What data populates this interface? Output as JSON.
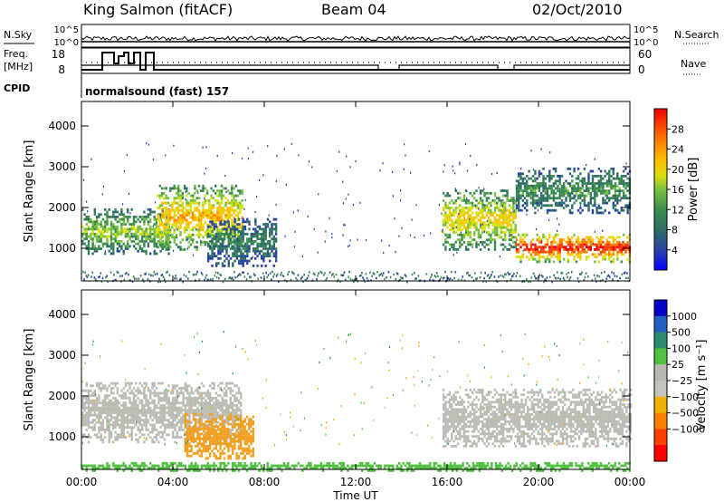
{
  "header": {
    "station": "King Salmon (fitACF)",
    "beam": "Beam 04",
    "date": "02/Oct/2010"
  },
  "top_panels": {
    "nsky_label": "N.Sky",
    "nsky_ticks": [
      "10^5",
      "10^0"
    ],
    "nsearch_label": "N.Search",
    "nsearch_ticks": [
      "10^5",
      "10^0"
    ],
    "freq_label_1": "Freq.",
    "freq_label_2": "[MHz]",
    "freq_ticks": [
      "18",
      "8"
    ],
    "nave_label": "Nave",
    "nave_ticks": [
      "60",
      "0"
    ],
    "cpid_label": "CPID",
    "cpid_text": "normalsound (fast) 157"
  },
  "chart_data": [
    {
      "type": "heatmap",
      "name": "power-panel",
      "ylabel": "Slant Range [km]",
      "ylim": [
        200,
        4600
      ],
      "yticks": [
        1000,
        2000,
        3000,
        4000
      ],
      "xlim": [
        0,
        24
      ],
      "colorbar": {
        "label": "Power [dB]",
        "ticks": [
          "4",
          "8",
          "12",
          "16",
          "20",
          "24",
          "28"
        ],
        "colors": [
          "#0000ff",
          "#2840a8",
          "#2e6e64",
          "#3a8c50",
          "#78c040",
          "#d8e010",
          "#ffc000",
          "#ff8000",
          "#ff4000",
          "#ee0000"
        ]
      },
      "features": [
        {
          "t_start": 0.0,
          "t_end": 3.8,
          "range_low": 900,
          "range_high": 2000,
          "power_db": 14
        },
        {
          "t_start": 3.3,
          "t_end": 7.0,
          "range_low": 1000,
          "range_high": 2600,
          "power_db": 20
        },
        {
          "t_start": 5.5,
          "t_end": 8.5,
          "range_low": 600,
          "range_high": 1800,
          "power_db": 8
        },
        {
          "t_start": 15.8,
          "t_end": 19.0,
          "range_low": 1000,
          "range_high": 2500,
          "power_db": 18
        },
        {
          "t_start": 19.0,
          "t_end": 24.0,
          "range_low": 700,
          "range_high": 1400,
          "power_db": 28
        },
        {
          "t_start": 19.0,
          "t_end": 24.0,
          "range_low": 1900,
          "range_high": 3000,
          "power_db": 10
        }
      ]
    },
    {
      "type": "heatmap",
      "name": "velocity-panel",
      "ylabel": "Slant Range [km]",
      "ylim": [
        200,
        4600
      ],
      "yticks": [
        1000,
        2000,
        3000,
        4000
      ],
      "xlim": [
        0,
        24
      ],
      "xlabel": "Time UT",
      "xticks": [
        "00:00",
        "04:00",
        "08:00",
        "12:00",
        "16:00",
        "20:00",
        "00:00"
      ],
      "colorbar": {
        "label": "Velocity [m s⁻¹]",
        "ticks": [
          "1000",
          "500",
          "100",
          "25",
          "−25",
          "−100",
          "−500",
          "−1000"
        ],
        "colors": [
          "#0000c8",
          "#2060c0",
          "#2e8a6e",
          "#50c040",
          "#b8b8b0",
          "#c4c4bc",
          "#f0b000",
          "#ff8000",
          "#ff4000",
          "#ff0000"
        ]
      },
      "features": [
        {
          "t_start": 0.0,
          "t_end": 7.0,
          "range_low": 900,
          "range_high": 2400,
          "velocity": 0
        },
        {
          "t_start": 4.5,
          "t_end": 7.5,
          "range_low": 500,
          "range_high": 1600,
          "velocity": -300
        },
        {
          "t_start": 15.8,
          "t_end": 24.0,
          "range_low": 800,
          "range_high": 2200,
          "velocity": 0
        },
        {
          "t_start": 0.0,
          "t_end": 24.0,
          "range_low": 200,
          "range_high": 400,
          "velocity": 60
        }
      ]
    }
  ]
}
